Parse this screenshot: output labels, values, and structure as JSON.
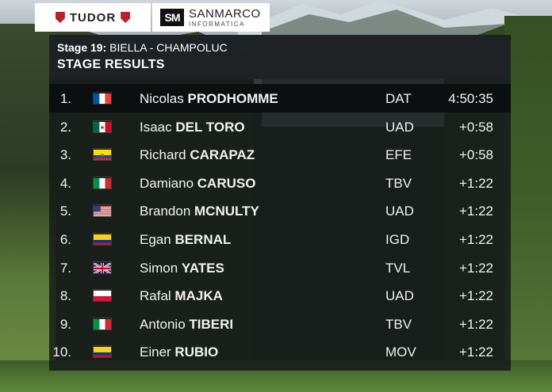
{
  "sponsors": {
    "left": {
      "name": "TUDOR",
      "icon": "tudor-shield-icon"
    },
    "right": {
      "name": "SANMARCO",
      "subtitle": "INFORMATICA",
      "monogram": "SM"
    }
  },
  "header": {
    "stage_label": "Stage 19:",
    "route": "BIELLA - CHAMPOLUC",
    "title": "STAGE RESULTS"
  },
  "results": [
    {
      "rank": "1.",
      "flag": "france",
      "first": "Nicolas",
      "last": "PRODHOMME",
      "team": "DAT",
      "time": "4:50:35"
    },
    {
      "rank": "2.",
      "flag": "mexico",
      "first": "Isaac",
      "last": "DEL TORO",
      "team": "UAD",
      "time": "+0:58"
    },
    {
      "rank": "3.",
      "flag": "ecuador",
      "first": "Richard",
      "last": "CARAPAZ",
      "team": "EFE",
      "time": "+0:58"
    },
    {
      "rank": "4.",
      "flag": "italy",
      "first": "Damiano",
      "last": "CARUSO",
      "team": "TBV",
      "time": "+1:22"
    },
    {
      "rank": "5.",
      "flag": "usa",
      "first": "Brandon",
      "last": "MCNULTY",
      "team": "UAD",
      "time": "+1:22"
    },
    {
      "rank": "6.",
      "flag": "colombia",
      "first": "Egan",
      "last": "BERNAL",
      "team": "IGD",
      "time": "+1:22"
    },
    {
      "rank": "7.",
      "flag": "uk",
      "first": "Simon",
      "last": "YATES",
      "team": "TVL",
      "time": "+1:22"
    },
    {
      "rank": "8.",
      "flag": "poland",
      "first": "Rafal",
      "last": "MAJKA",
      "team": "UAD",
      "time": "+1:22"
    },
    {
      "rank": "9.",
      "flag": "italy",
      "first": "Antonio",
      "last": "TIBERI",
      "team": "TBV",
      "time": "+1:22"
    },
    {
      "rank": "10.",
      "flag": "colombia",
      "first": "Einer",
      "last": "RUBIO",
      "team": "MOV",
      "time": "+1:22"
    }
  ],
  "colors": {
    "panel": "#141818",
    "header": "#1e2224",
    "leader_row": "#0c0f10",
    "text": "#f2f2f2",
    "tudor_red": "#b8202a"
  }
}
